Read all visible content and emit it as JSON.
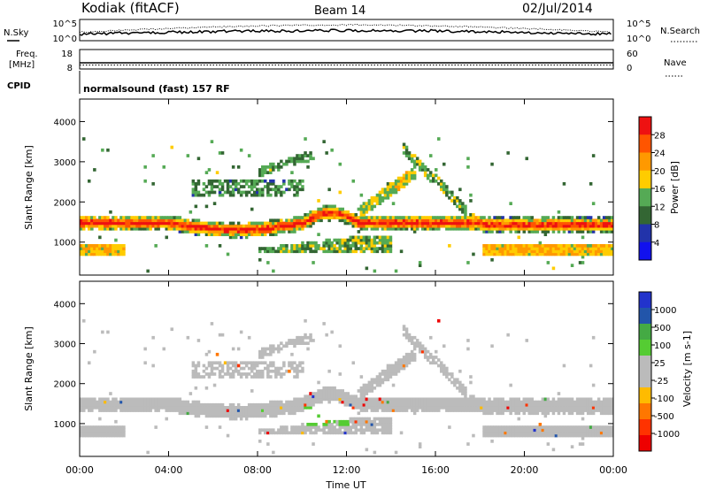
{
  "header": {
    "station": "Kodiak (fitACF)",
    "beam": "Beam 14",
    "date": "02/Jul/2014"
  },
  "top_panels": {
    "nsky_label": "N.Sky",
    "nsky_ticks": [
      "10^5",
      "10^0"
    ],
    "nsearch_label": "N.Search",
    "nsearch_ticks": [
      "10^5",
      "10^0"
    ],
    "freq_label": "Freq.",
    "freq_unit": "[MHz]",
    "freq_ticks": [
      "18",
      "8"
    ],
    "nave_label": "Nave",
    "nave_ticks": [
      "60",
      "0"
    ],
    "cpid_label": "CPID",
    "cpid_text": "normalsound (fast) 157 RF"
  },
  "chart_data": [
    {
      "type": "heatmap",
      "name": "power",
      "ylabel": "Slant Range [km]",
      "yticks": [
        1000,
        2000,
        3000,
        4000
      ],
      "ylim": [
        180,
        4560
      ],
      "xlim": [
        0,
        24
      ],
      "colorbar": {
        "label": "Power [dB]",
        "ticks": [
          "28",
          "24",
          "20",
          "16",
          "12",
          "8",
          "4"
        ],
        "colors": [
          "#ee1111",
          "#ff5500",
          "#ff9900",
          "#ffcc00",
          "#55aa55",
          "#336633",
          "#2233aa",
          "#1111ee"
        ]
      }
    },
    {
      "type": "heatmap",
      "name": "velocity",
      "ylabel": "Slant Range [km]",
      "yticks": [
        1000,
        2000,
        3000,
        4000
      ],
      "ylim": [
        180,
        4560
      ],
      "xlim": [
        0,
        24
      ],
      "colorbar": {
        "label": "Velocity [m s-1]",
        "ticks": [
          "1000",
          "500",
          "100",
          "25",
          "-25",
          "-100",
          "-500",
          "-1000"
        ],
        "colors": [
          "#2233cc",
          "#2255aa",
          "#44aa44",
          "#55cc33",
          "#bbbbbb",
          "#bbbbbb",
          "#ffbb00",
          "#ff7700",
          "#ff3300",
          "#ee0000"
        ]
      }
    }
  ],
  "x_axis": {
    "ticks": [
      "00:00",
      "04:00",
      "08:00",
      "12:00",
      "16:00",
      "20:00",
      "00:00"
    ],
    "label": "Time UT"
  }
}
